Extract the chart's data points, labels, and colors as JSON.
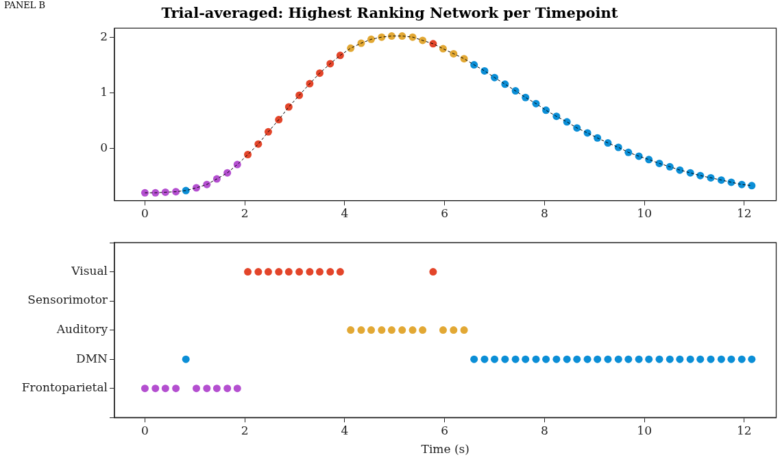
{
  "chart_data": [
    {
      "type": "line",
      "title": "Trial-averaged: Highest Ranking Network per Timepoint",
      "annotations": [
        "PANEL B"
      ],
      "x": [
        0,
        0.21,
        0.41,
        0.62,
        0.82,
        1.03,
        1.24,
        1.44,
        1.65,
        1.85,
        2.06,
        2.27,
        2.47,
        2.68,
        2.88,
        3.09,
        3.3,
        3.5,
        3.71,
        3.91,
        4.12,
        4.33,
        4.53,
        4.74,
        4.94,
        5.15,
        5.36,
        5.56,
        5.77,
        5.97,
        6.18,
        6.39,
        6.59,
        6.8,
        7.0,
        7.21,
        7.42,
        7.62,
        7.83,
        8.03,
        8.24,
        8.45,
        8.65,
        8.86,
        9.06,
        9.27,
        9.48,
        9.68,
        9.89,
        10.09,
        10.3,
        10.51,
        10.71,
        10.92,
        11.12,
        11.33,
        11.54,
        11.74,
        11.95,
        12.15
      ],
      "series": [
        {
          "type": "line",
          "color": "#000000",
          "line_style": "dashed",
          "marker": "none",
          "values": [
            -0.8,
            -0.8,
            -0.79,
            -0.78,
            -0.76,
            -0.71,
            -0.65,
            -0.55,
            -0.44,
            -0.29,
            -0.11,
            0.08,
            0.3,
            0.52,
            0.75,
            0.96,
            1.17,
            1.36,
            1.53,
            1.68,
            1.81,
            1.9,
            1.97,
            2.01,
            2.03,
            2.03,
            2.01,
            1.95,
            1.89,
            1.8,
            1.71,
            1.62,
            1.51,
            1.4,
            1.28,
            1.16,
            1.04,
            0.92,
            0.81,
            0.69,
            0.58,
            0.48,
            0.37,
            0.28,
            0.19,
            0.1,
            0.02,
            -0.07,
            -0.14,
            -0.2,
            -0.27,
            -0.33,
            -0.39,
            -0.44,
            -0.49,
            -0.53,
            -0.57,
            -0.61,
            -0.65,
            -0.67
          ]
        },
        {
          "type": "scatter",
          "marker": "circle",
          "values": [
            -0.8,
            -0.8,
            -0.79,
            -0.78,
            -0.76,
            -0.71,
            -0.65,
            -0.55,
            -0.44,
            -0.29,
            -0.11,
            0.08,
            0.3,
            0.52,
            0.75,
            0.96,
            1.17,
            1.36,
            1.53,
            1.68,
            1.81,
            1.9,
            1.97,
            2.01,
            2.03,
            2.03,
            2.01,
            1.95,
            1.89,
            1.8,
            1.71,
            1.62,
            1.51,
            1.4,
            1.28,
            1.16,
            1.04,
            0.92,
            0.81,
            0.69,
            0.58,
            0.48,
            0.37,
            0.28,
            0.19,
            0.1,
            0.02,
            -0.07,
            -0.14,
            -0.2,
            -0.27,
            -0.33,
            -0.39,
            -0.44,
            -0.49,
            -0.53,
            -0.57,
            -0.61,
            -0.65,
            -0.67
          ],
          "colors": [
            "#b44fd0",
            "#b44fd0",
            "#b44fd0",
            "#b44fd0",
            "#0b8ed6",
            "#b44fd0",
            "#b44fd0",
            "#b44fd0",
            "#b44fd0",
            "#b44fd0",
            "#e3452a",
            "#e3452a",
            "#e3452a",
            "#e3452a",
            "#e3452a",
            "#e3452a",
            "#e3452a",
            "#e3452a",
            "#e3452a",
            "#e3452a",
            "#e2a834",
            "#e2a834",
            "#e2a834",
            "#e2a834",
            "#e2a834",
            "#e2a834",
            "#e2a834",
            "#e2a834",
            "#e3452a",
            "#e2a834",
            "#e2a834",
            "#e2a834",
            "#0b8ed6",
            "#0b8ed6",
            "#0b8ed6",
            "#0b8ed6",
            "#0b8ed6",
            "#0b8ed6",
            "#0b8ed6",
            "#0b8ed6",
            "#0b8ed6",
            "#0b8ed6",
            "#0b8ed6",
            "#0b8ed6",
            "#0b8ed6",
            "#0b8ed6",
            "#0b8ed6",
            "#0b8ed6",
            "#0b8ed6",
            "#0b8ed6",
            "#0b8ed6",
            "#0b8ed6",
            "#0b8ed6",
            "#0b8ed6",
            "#0b8ed6",
            "#0b8ed6",
            "#0b8ed6",
            "#0b8ed6",
            "#0b8ed6",
            "#0b8ed6"
          ]
        }
      ],
      "xlim": [
        -0.61,
        12.64
      ],
      "xticks": [
        0,
        2,
        4,
        6,
        8,
        10,
        12
      ],
      "ylim": [
        -0.94,
        2.17
      ],
      "yticks": [
        0,
        1,
        2
      ],
      "grid": false,
      "legend": false
    },
    {
      "type": "scatter",
      "orientation": "horizontal",
      "xlabel": "Time (s)",
      "marker": "circle",
      "categories": [
        null,
        "Visual",
        "Sensorimotor",
        "Auditory",
        "DMN",
        "Frontoparietal",
        null
      ],
      "series": [
        {
          "values": [
            null,
            2.06,
            null,
            4.12,
            0.82,
            0,
            null
          ],
          "colors": [
            null,
            "#e3452a",
            null,
            "#e2a834",
            "#0b8ed6",
            "#b44fd0",
            null
          ]
        },
        {
          "values": [
            null,
            2.27,
            null,
            4.33,
            6.59,
            0.21,
            null
          ],
          "colors": [
            null,
            "#e3452a",
            null,
            "#e2a834",
            "#0b8ed6",
            "#b44fd0",
            null
          ]
        },
        {
          "values": [
            null,
            2.47,
            null,
            4.53,
            6.8,
            0.41,
            null
          ],
          "colors": [
            null,
            "#e3452a",
            null,
            "#e2a834",
            "#0b8ed6",
            "#b44fd0",
            null
          ]
        },
        {
          "values": [
            null,
            2.68,
            null,
            4.74,
            7.0,
            0.62,
            null
          ],
          "colors": [
            null,
            "#e3452a",
            null,
            "#e2a834",
            "#0b8ed6",
            "#b44fd0",
            null
          ]
        },
        {
          "values": [
            null,
            2.88,
            null,
            4.94,
            7.21,
            1.03,
            null
          ],
          "colors": [
            null,
            "#e3452a",
            null,
            "#e2a834",
            "#0b8ed6",
            "#b44fd0",
            null
          ]
        },
        {
          "values": [
            null,
            3.09,
            null,
            5.15,
            7.42,
            1.24,
            null
          ],
          "colors": [
            null,
            "#e3452a",
            null,
            "#e2a834",
            "#0b8ed6",
            "#b44fd0",
            null
          ]
        },
        {
          "values": [
            null,
            3.3,
            null,
            5.36,
            7.62,
            1.44,
            null
          ],
          "colors": [
            null,
            "#e3452a",
            null,
            "#e2a834",
            "#0b8ed6",
            "#b44fd0",
            null
          ]
        },
        {
          "values": [
            null,
            3.5,
            null,
            5.56,
            7.83,
            1.65,
            null
          ],
          "colors": [
            null,
            "#e3452a",
            null,
            "#e2a834",
            "#0b8ed6",
            "#b44fd0",
            null
          ]
        },
        {
          "values": [
            null,
            3.71,
            null,
            5.97,
            8.03,
            1.85,
            null
          ],
          "colors": [
            null,
            "#e3452a",
            null,
            "#e2a834",
            "#0b8ed6",
            "#b44fd0",
            null
          ]
        },
        {
          "values": [
            null,
            3.91,
            null,
            6.18,
            8.24,
            null,
            null
          ],
          "colors": [
            null,
            "#e3452a",
            null,
            "#e2a834",
            "#0b8ed6",
            null,
            null
          ]
        },
        {
          "values": [
            null,
            5.77,
            null,
            6.39,
            8.45,
            null,
            null
          ],
          "colors": [
            null,
            "#e3452a",
            null,
            "#e2a834",
            "#0b8ed6",
            null,
            null
          ]
        },
        {
          "color": "#0b8ed6",
          "values": [
            null,
            null,
            null,
            null,
            8.65,
            null,
            null
          ]
        },
        {
          "color": "#0b8ed6",
          "values": [
            null,
            null,
            null,
            null,
            8.86,
            null,
            null
          ]
        },
        {
          "color": "#0b8ed6",
          "values": [
            null,
            null,
            null,
            null,
            9.06,
            null,
            null
          ]
        },
        {
          "color": "#0b8ed6",
          "values": [
            null,
            null,
            null,
            null,
            9.27,
            null,
            null
          ]
        },
        {
          "color": "#0b8ed6",
          "values": [
            null,
            null,
            null,
            null,
            9.48,
            null,
            null
          ]
        },
        {
          "color": "#0b8ed6",
          "values": [
            null,
            null,
            null,
            null,
            9.68,
            null,
            null
          ]
        },
        {
          "color": "#0b8ed6",
          "values": [
            null,
            null,
            null,
            null,
            9.89,
            null,
            null
          ]
        },
        {
          "color": "#0b8ed6",
          "values": [
            null,
            null,
            null,
            null,
            10.09,
            null,
            null
          ]
        },
        {
          "color": "#0b8ed6",
          "values": [
            null,
            null,
            null,
            null,
            10.3,
            null,
            null
          ]
        },
        {
          "color": "#0b8ed6",
          "values": [
            null,
            null,
            null,
            null,
            10.51,
            null,
            null
          ]
        },
        {
          "color": "#0b8ed6",
          "values": [
            null,
            null,
            null,
            null,
            10.71,
            null,
            null
          ]
        },
        {
          "color": "#0b8ed6",
          "values": [
            null,
            null,
            null,
            null,
            10.92,
            null,
            null
          ]
        },
        {
          "color": "#0b8ed6",
          "values": [
            null,
            null,
            null,
            null,
            11.12,
            null,
            null
          ]
        },
        {
          "color": "#0b8ed6",
          "values": [
            null,
            null,
            null,
            null,
            11.33,
            null,
            null
          ]
        },
        {
          "color": "#0b8ed6",
          "values": [
            null,
            null,
            null,
            null,
            11.54,
            null,
            null
          ]
        },
        {
          "color": "#0b8ed6",
          "values": [
            null,
            null,
            null,
            null,
            11.74,
            null,
            null
          ]
        },
        {
          "color": "#0b8ed6",
          "values": [
            null,
            null,
            null,
            null,
            11.95,
            null,
            null
          ]
        },
        {
          "color": "#0b8ed6",
          "values": [
            null,
            null,
            null,
            null,
            12.15,
            null,
            null
          ]
        }
      ],
      "xlim": [
        -0.61,
        12.64
      ],
      "xticks": [
        0,
        2,
        4,
        6,
        8,
        10,
        12
      ],
      "grid": false,
      "legend": false
    }
  ]
}
